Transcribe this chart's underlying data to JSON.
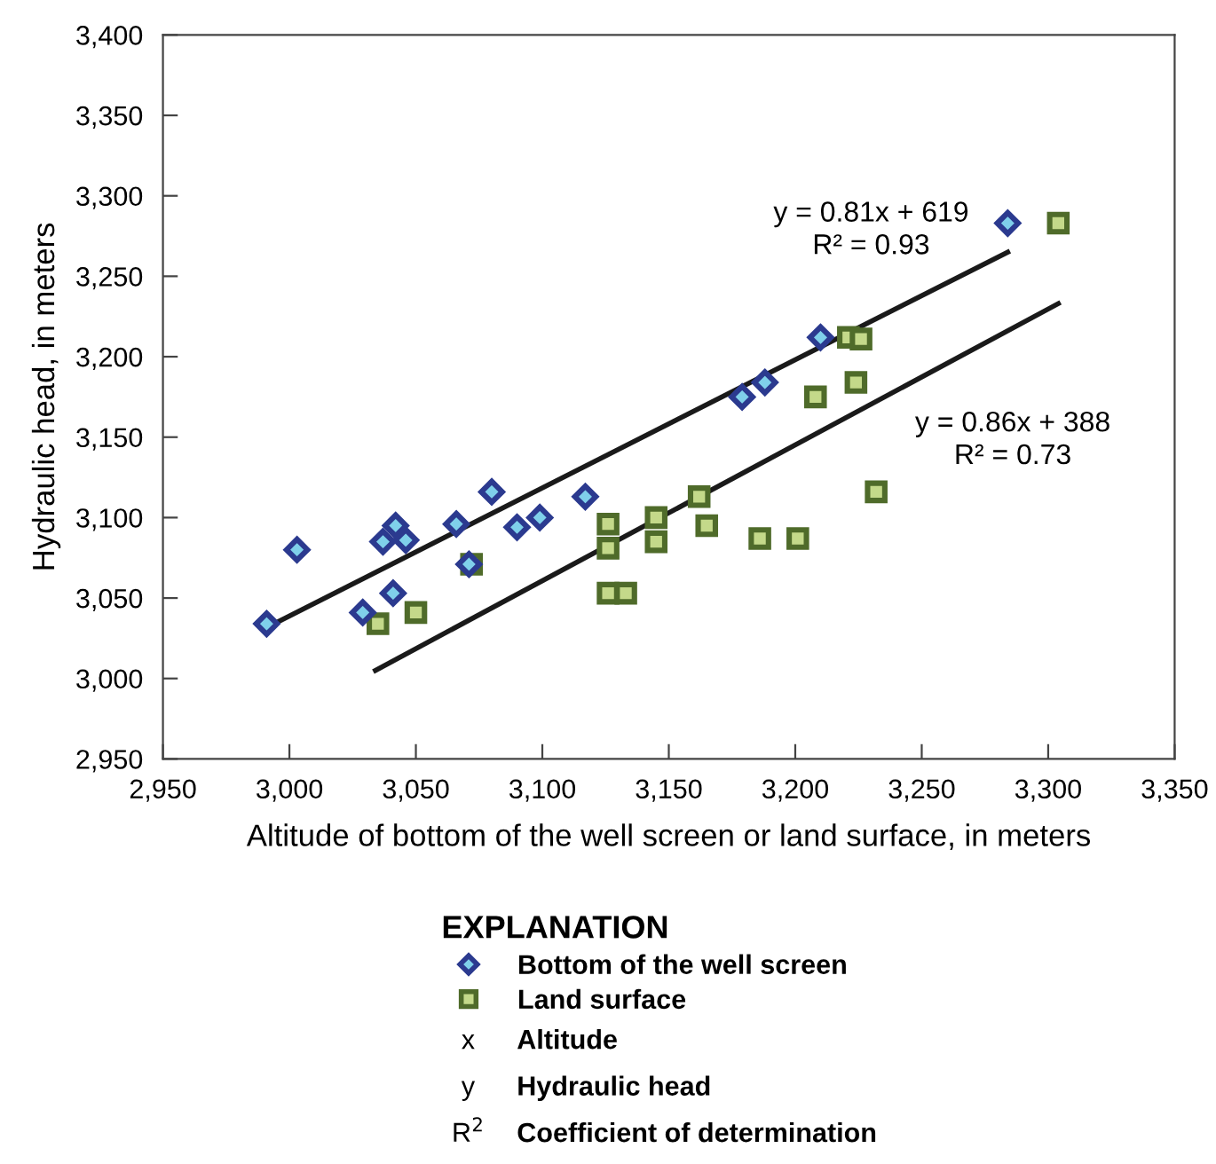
{
  "chart_data": {
    "type": "scatter",
    "xlabel": "Altitude of bottom of the well screen or land surface, in meters",
    "ylabel": "Hydraulic head, in meters",
    "legend_title": "EXPLANATION",
    "legend": "bottom",
    "grid": false,
    "xlim": [
      2950,
      3350
    ],
    "ylim": [
      2950,
      3400
    ],
    "xticks": [
      {
        "value": 2950,
        "label": "2,950"
      },
      {
        "value": 3000,
        "label": "3,000"
      },
      {
        "value": 3050,
        "label": "3,050"
      },
      {
        "value": 3100,
        "label": "3,100"
      },
      {
        "value": 3150,
        "label": "3,150"
      },
      {
        "value": 3200,
        "label": "3,200"
      },
      {
        "value": 3250,
        "label": "3,250"
      },
      {
        "value": 3300,
        "label": "3,300"
      },
      {
        "value": 3350,
        "label": "3,350"
      }
    ],
    "yticks": [
      {
        "value": 2950,
        "label": "2,950"
      },
      {
        "value": 3000,
        "label": "3,000"
      },
      {
        "value": 3050,
        "label": "3,050"
      },
      {
        "value": 3100,
        "label": "3,100"
      },
      {
        "value": 3150,
        "label": "3,150"
      },
      {
        "value": 3200,
        "label": "3,200"
      },
      {
        "value": 3250,
        "label": "3,250"
      },
      {
        "value": 3300,
        "label": "3,300"
      },
      {
        "value": 3350,
        "label": "3,350"
      },
      {
        "value": 3400,
        "label": "3,400"
      }
    ],
    "series": [
      {
        "type": "line",
        "color": "#1a1a1a",
        "marker": "none",
        "line_style": "solid",
        "x": [
          2994,
          3284
        ],
        "values": [
          3034,
          3265
        ]
      },
      {
        "type": "line",
        "color": "#1a1a1a",
        "marker": "none",
        "line_style": "solid",
        "x": [
          3034,
          3304
        ],
        "values": [
          3005,
          3233
        ]
      },
      {
        "name": "Bottom of the well screen",
        "color": "#2b3a8f",
        "marker": "diamond",
        "x": [
          2991,
          3003,
          3029,
          3037,
          3042,
          3046,
          3041,
          3066,
          3080,
          3071,
          3090,
          3099,
          3117,
          3179,
          3188,
          3210,
          3284
        ],
        "values": [
          3034,
          3080,
          3041,
          3085,
          3095,
          3086,
          3053,
          3096,
          3116,
          3071,
          3094,
          3100,
          3113,
          3175,
          3184,
          3212,
          3283
        ]
      },
      {
        "name": "Land surface",
        "color": "#4f6b2a",
        "marker": "square",
        "x": [
          3035,
          3050,
          3072,
          3126,
          3126,
          3126,
          3133,
          3145,
          3145,
          3162,
          3165,
          3186,
          3201,
          3208,
          3221,
          3226,
          3224,
          3232,
          3304
        ],
        "values": [
          3034,
          3041,
          3071,
          3096,
          3081,
          3053,
          3053,
          3100,
          3085,
          3113,
          3095,
          3087,
          3087,
          3175,
          3212,
          3211,
          3184,
          3116,
          3283
        ]
      }
    ],
    "annotations": [
      "y = 0.81x + 619\nR² = 0.93",
      "y = 0.86x + 388\nR² = 0.73",
      "x Altitude",
      "y Hydraulic head",
      "R$^{2}$ Coefficient of determination"
    ]
  }
}
